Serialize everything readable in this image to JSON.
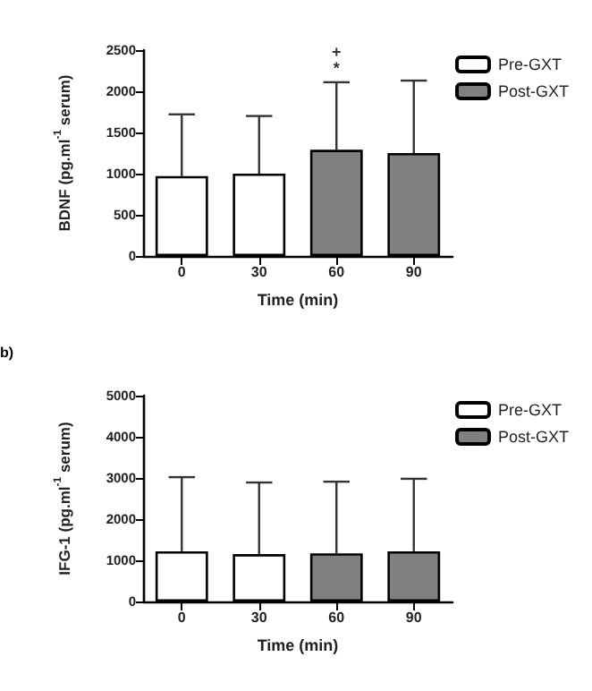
{
  "chart_data": [
    {
      "type": "bar",
      "xlabel": "Time (min)",
      "ylabel": "BDNF (pg.ml$^{-1}$ serum)",
      "categories": [
        "0",
        "30",
        "60",
        "90"
      ],
      "series": [
        {
          "name": "Pre-GXT",
          "color": "#ffffff",
          "values": [
            970,
            1000,
            null,
            null
          ],
          "errors": [
            [
              970,
              1720
            ],
            [
              1000,
              1700
            ],
            null,
            null
          ]
        },
        {
          "name": "Post-GXT",
          "color": "#808080",
          "values": [
            null,
            null,
            1290,
            1250
          ],
          "errors": [
            null,
            null,
            [
              1290,
              2110
            ],
            [
              1250,
              2130
            ]
          ]
        }
      ],
      "ylim": [
        0,
        2500
      ],
      "yticks": [
        0,
        500,
        1000,
        1500,
        2000,
        2500
      ],
      "grid": false,
      "legend": "top right",
      "annotations": [
        "+",
        "*"
      ]
    },
    {
      "type": "bar",
      "xlabel": "Time (min)",
      "ylabel": "IFG-1 (pg.ml$^{-1}$ serum)",
      "categories": [
        "0",
        "30",
        "60",
        "90"
      ],
      "series": [
        {
          "name": "Pre-GXT",
          "color": "#ffffff",
          "values": [
            1220,
            1150,
            null,
            null
          ],
          "errors": [
            [
              1220,
              3020
            ],
            [
              1150,
              2890
            ],
            null,
            null
          ]
        },
        {
          "name": "Post-GXT",
          "color": "#808080",
          "values": [
            null,
            null,
            1170,
            1220
          ],
          "errors": [
            null,
            null,
            [
              1170,
              2910
            ],
            [
              1220,
              2980
            ]
          ]
        }
      ],
      "ylim": [
        0,
        5000
      ],
      "yticks": [
        0,
        1000,
        2000,
        3000,
        4000,
        5000
      ],
      "grid": false,
      "legend": "top right",
      "annotations": [
        "b)"
      ]
    }
  ]
}
